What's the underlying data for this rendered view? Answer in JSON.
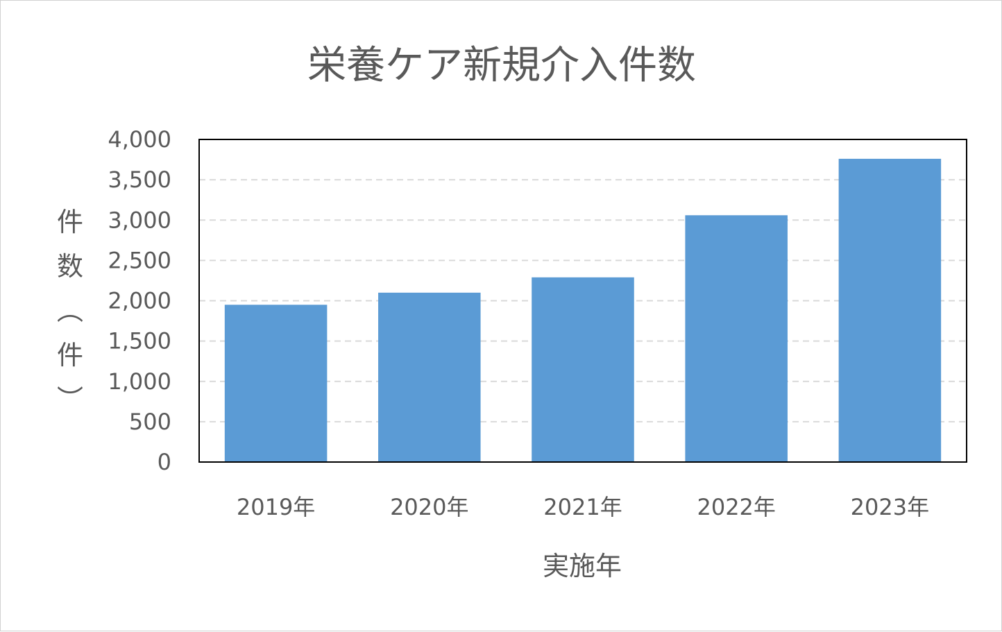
{
  "chart_data": {
    "type": "bar",
    "title": "栄養ケア新規介入件数",
    "xlabel": "実施年",
    "ylabel": "件数（件）",
    "categories": [
      "2019年",
      "2020年",
      "2021年",
      "2022年",
      "2023年"
    ],
    "values": [
      1950,
      2100,
      2290,
      3060,
      3760
    ],
    "ylim": [
      0,
      4000
    ],
    "yticks": [
      0,
      500,
      1000,
      1500,
      2000,
      2500,
      3000,
      3500,
      4000
    ],
    "ytick_labels": [
      "0",
      "500",
      "1,000",
      "1,500",
      "2,000",
      "2,500",
      "3,000",
      "3,500",
      "4,000"
    ],
    "grid": "horizontal-dashed",
    "legend": "none",
    "colors": {
      "bar": "#5b9bd5",
      "text": "#595959",
      "grid": "#d9d9d9",
      "plot_border": "#000000"
    }
  }
}
